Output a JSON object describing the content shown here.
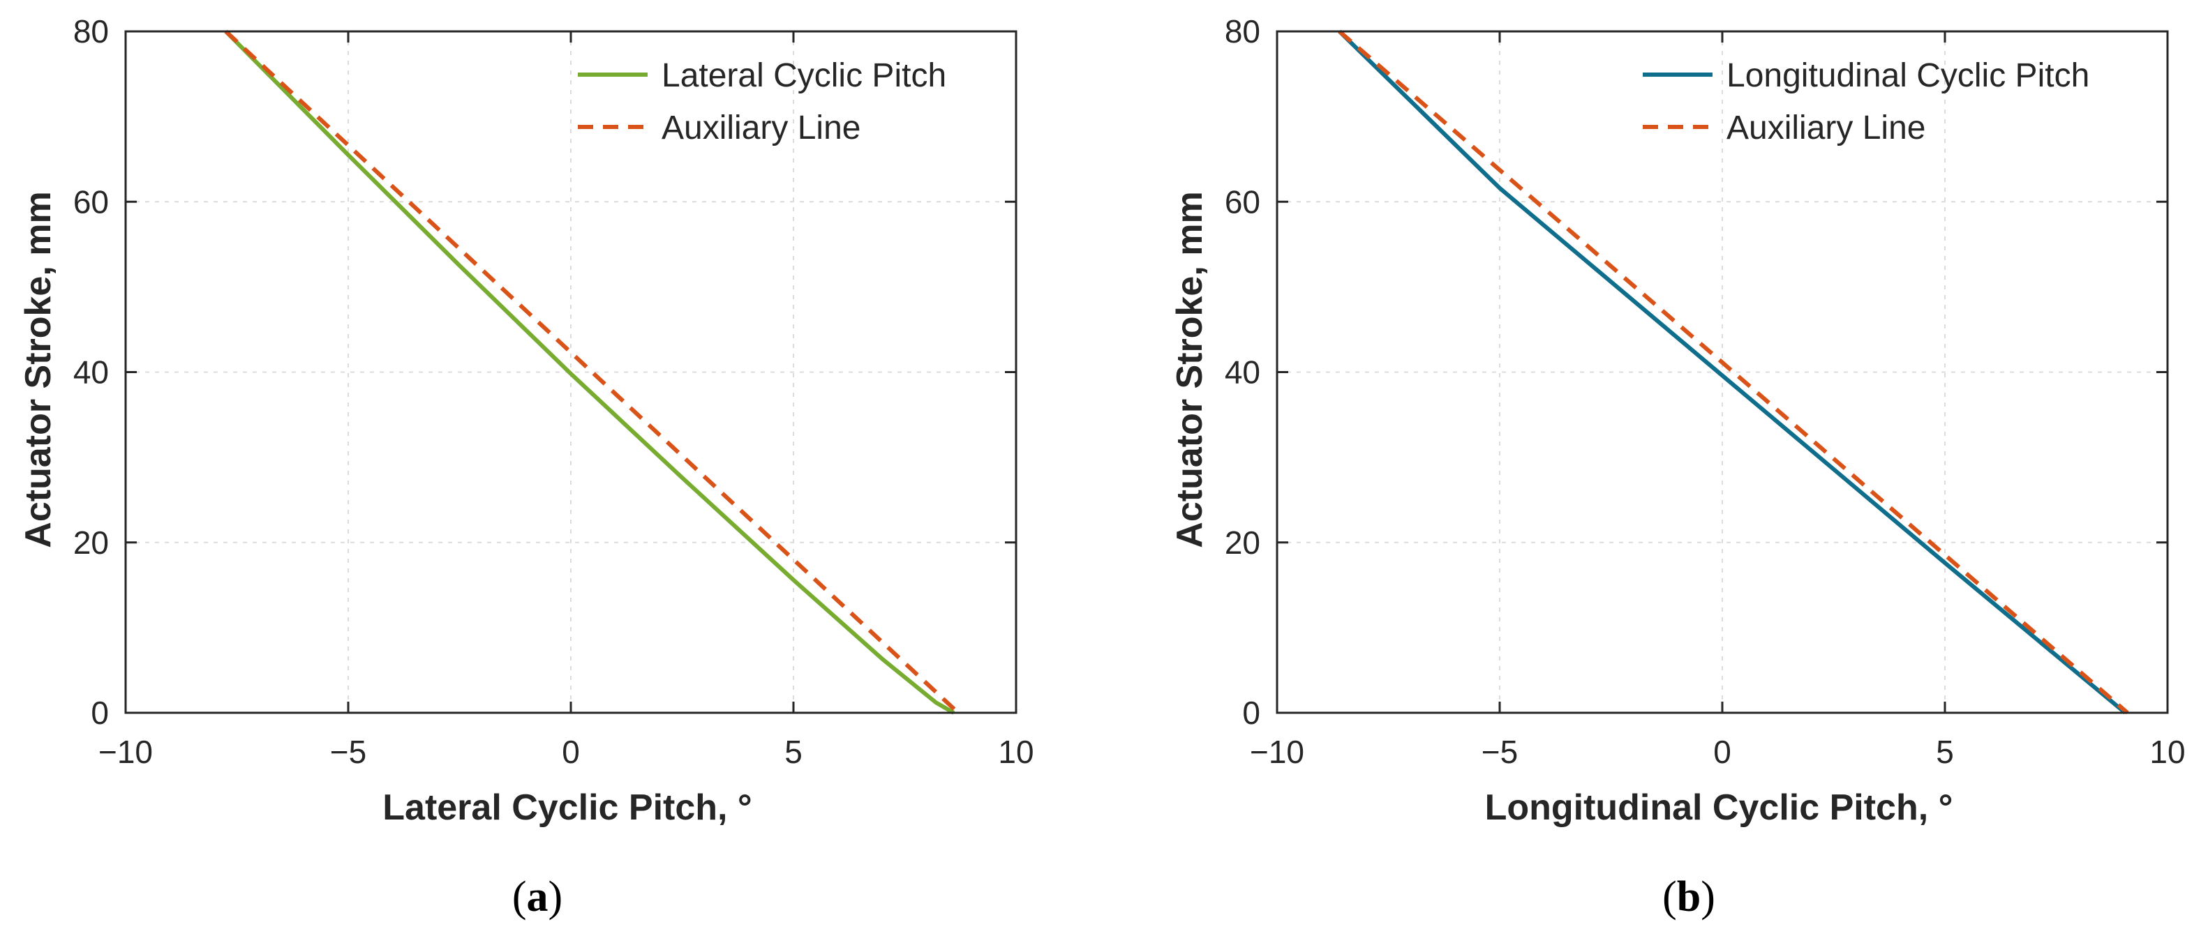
{
  "chart_data": [
    {
      "type": "line",
      "panel": "a",
      "caption_letter": "a",
      "xlabel": "Lateral Cyclic Pitch, °",
      "ylabel": "Actuator Stroke, mm",
      "xlim": [
        -10,
        10
      ],
      "ylim": [
        0,
        80
      ],
      "xticks": [
        -10,
        -5,
        0,
        5,
        10
      ],
      "xtick_labels": [
        "−10",
        "−5",
        "0",
        "5",
        "10"
      ],
      "yticks": [
        0,
        20,
        40,
        60,
        80
      ],
      "ytick_labels": [
        "0",
        "20",
        "40",
        "60",
        "80"
      ],
      "grid": true,
      "legend_position": "top-right",
      "series": [
        {
          "name": "Lateral Cyclic Pitch",
          "style": "solid",
          "color": "#77AC30",
          "x": [
            -7.75,
            -5,
            -2.5,
            0,
            2.5,
            5,
            7,
            8.2,
            8.6
          ],
          "y": [
            80,
            65.5,
            52.5,
            39.8,
            27.6,
            15.6,
            6.3,
            1.2,
            0
          ]
        },
        {
          "name": "Auxiliary Line",
          "style": "dashed",
          "color": "#D95319",
          "x": [
            -7.75,
            8.7
          ],
          "y": [
            80,
            0
          ]
        }
      ]
    },
    {
      "type": "line",
      "panel": "b",
      "caption_letter": "b",
      "xlabel": "Longitudinal Cyclic Pitch, °",
      "ylabel": "Actuator Stroke, mm",
      "xlim": [
        -10,
        10
      ],
      "ylim": [
        0,
        80
      ],
      "xticks": [
        -10,
        -5,
        0,
        5,
        10
      ],
      "xtick_labels": [
        "−10",
        "−5",
        "0",
        "5",
        "10"
      ],
      "yticks": [
        0,
        20,
        40,
        60,
        80
      ],
      "ytick_labels": [
        "0",
        "20",
        "40",
        "60",
        "80"
      ],
      "grid": true,
      "legend_position": "top-right",
      "series": [
        {
          "name": "Longitudinal Cyclic Pitch",
          "style": "solid",
          "color": "#0E6E8C",
          "x": [
            -8.6,
            -5,
            0,
            5,
            9.05
          ],
          "y": [
            80,
            61.6,
            39.6,
            17.6,
            0
          ]
        },
        {
          "name": "Auxiliary Line",
          "style": "dashed",
          "color": "#D95319",
          "x": [
            -8.6,
            9.1
          ],
          "y": [
            80,
            0
          ]
        }
      ]
    }
  ]
}
